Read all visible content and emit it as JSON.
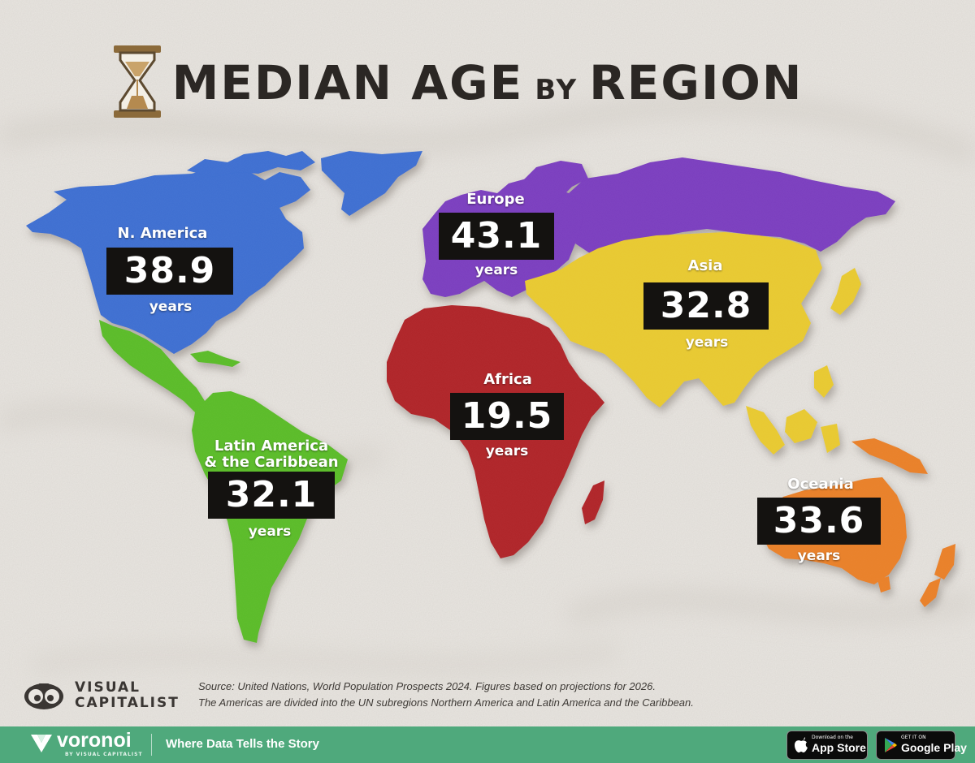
{
  "title": {
    "main": "MEDIAN AGE",
    "connector": "BY",
    "end": "REGION"
  },
  "regions": {
    "n_america": {
      "name": "N. America",
      "value": "38.9",
      "unit": "years",
      "color": "#3f6fd1"
    },
    "europe": {
      "name": "Europe",
      "value": "43.1",
      "unit": "years",
      "color": "#7b3fbf"
    },
    "asia": {
      "name": "Asia",
      "value": "32.8",
      "unit": "years",
      "color": "#e8c930"
    },
    "africa": {
      "name": "Africa",
      "value": "19.5",
      "unit": "years",
      "color": "#b0262c"
    },
    "latin_america": {
      "name_line1": "Latin America",
      "name_line2": "& the Caribbean",
      "value": "32.1",
      "unit": "years",
      "color": "#5cbc2c"
    },
    "oceania": {
      "name": "Oceania",
      "value": "33.6",
      "unit": "years",
      "color": "#e9812a"
    }
  },
  "source": {
    "line1": "Source: United Nations, World Population Prospects 2024. Figures based on projections for 2026.",
    "line2": "The Americas are divided into the UN subregions Northern America and Latin America and the Caribbean."
  },
  "branding": {
    "vc_line1": "VISUAL",
    "vc_line2": "CAPITALIST",
    "voronoi": "voronoi",
    "voronoi_sub": "BY VISUAL CAPITALIST",
    "tagline": "Where Data Tells the Story",
    "footer_color": "#4fa97c"
  },
  "store_buttons": {
    "apple_small": "Download on the",
    "apple_big": "App Store",
    "google_small": "GET IT ON",
    "google_big": "Google Play"
  }
}
